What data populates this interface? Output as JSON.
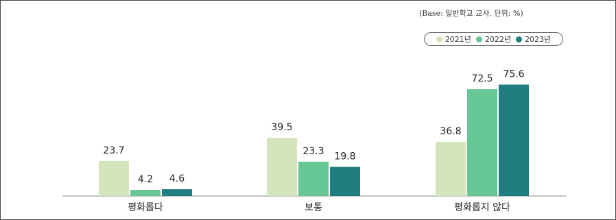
{
  "note": "(Base: 일반학교 교사, 단위: %)",
  "chart_data": {
    "type": "bar",
    "categories": [
      "평화롭다",
      "보통",
      "평화롭지 않다"
    ],
    "series": [
      {
        "name": "2021년",
        "color": "#d4e5bb",
        "values": [
          23.7,
          39.5,
          36.8
        ]
      },
      {
        "name": "2022년",
        "color": "#67c794",
        "values": [
          4.2,
          23.3,
          72.5
        ]
      },
      {
        "name": "2023년",
        "color": "#207e80",
        "values": [
          4.6,
          19.8,
          75.6
        ]
      }
    ],
    "ylim": [
      0,
      100
    ],
    "legend_position": "top-right",
    "grid": false
  }
}
